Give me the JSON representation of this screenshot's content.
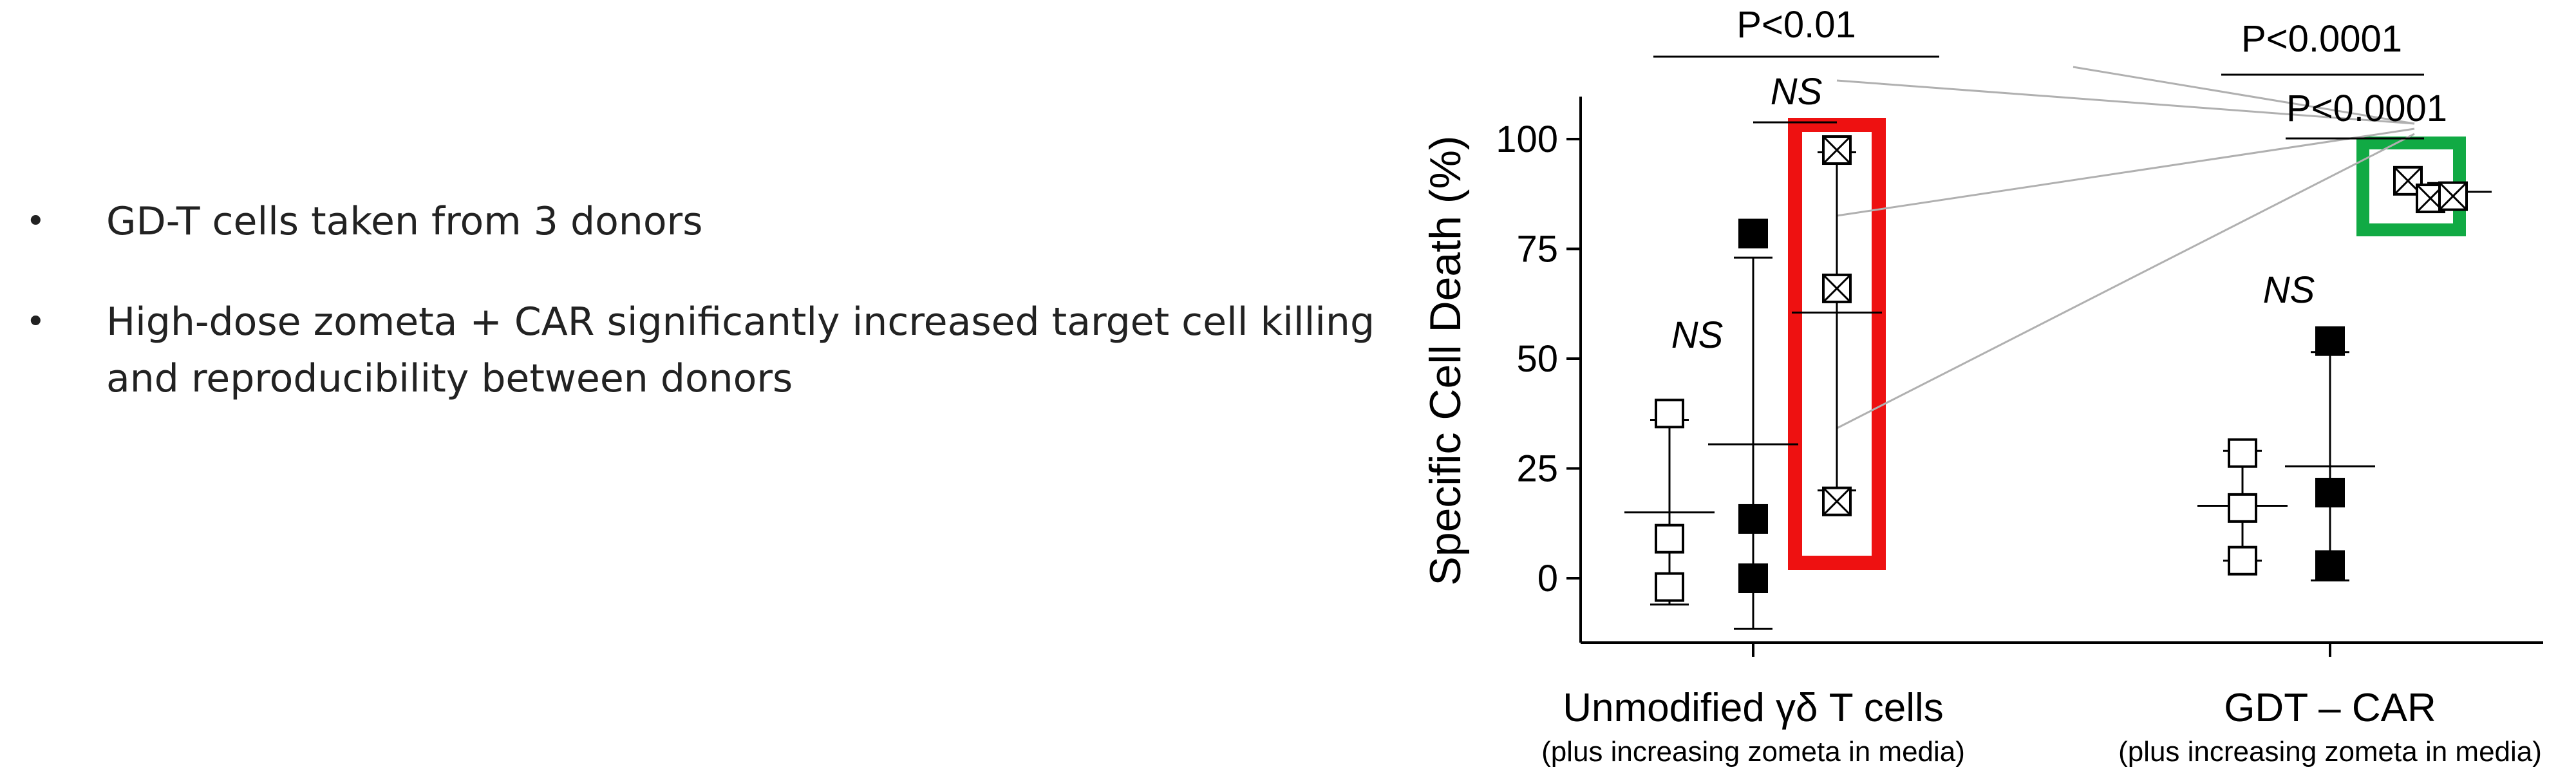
{
  "bullets": [
    "GD-T cells taken from 3 donors",
    "High-dose zometa + CAR significantly increased target cell killing and reproducibility between donors"
  ],
  "bullet_glyph": "•",
  "colors": {
    "highlight_red": "#ee1111",
    "highlight_green": "#11aa44",
    "connector_grey": "#b0b0b0"
  },
  "chart_data": {
    "type": "scatter",
    "title": "",
    "ylabel": "Specific Cell Death (%)",
    "ylim": [
      -15,
      112
    ],
    "y_ticks": [
      "100",
      "75",
      "50",
      "25",
      "0"
    ],
    "groups": [
      {
        "label": "Unmodified γδ T cells",
        "sublabel": "(plus increasing zometa in media)"
      },
      {
        "label": "GDT – CAR",
        "sublabel": "(plus increasing zometa in media)"
      }
    ],
    "series": [
      {
        "group": 0,
        "marker": "open-square",
        "values": [
          37.5,
          9,
          -2
        ],
        "mean": 15,
        "sd_range": [
          -6,
          36
        ]
      },
      {
        "group": 0,
        "marker": "filled-square",
        "values": [
          78.5,
          13.5,
          0
        ],
        "mean": 30.5,
        "sd_range": [
          -11.5,
          73
        ]
      },
      {
        "group": 0,
        "marker": "crossed-square",
        "values": [
          97.5,
          66,
          17.5
        ],
        "mean": 60.5,
        "sd_range": [
          20,
          97
        ],
        "highlight": "red"
      },
      {
        "group": 1,
        "marker": "open-square",
        "values": [
          28.5,
          16,
          4
        ],
        "mean": 16.5,
        "sd_range": [
          4,
          29
        ]
      },
      {
        "group": 1,
        "marker": "filled-square",
        "values": [
          54,
          19.5,
          3
        ],
        "mean": 25.5,
        "sd_range": [
          -0.5,
          51.5
        ]
      },
      {
        "group": 1,
        "marker": "crossed-square",
        "values": [
          90.5,
          86.5,
          87
        ],
        "mean": 88,
        "sd_range": [
          87,
          90
        ],
        "highlight": "green"
      }
    ],
    "annotations": [
      {
        "text": "P<0.01",
        "italic": false
      },
      {
        "text": "NS",
        "italic": true
      },
      {
        "text": "P<0.0001",
        "italic": false
      },
      {
        "text": "P<0.0001",
        "italic": false
      },
      {
        "text": "NS",
        "italic": true
      },
      {
        "text": "NS",
        "italic": true
      }
    ]
  }
}
